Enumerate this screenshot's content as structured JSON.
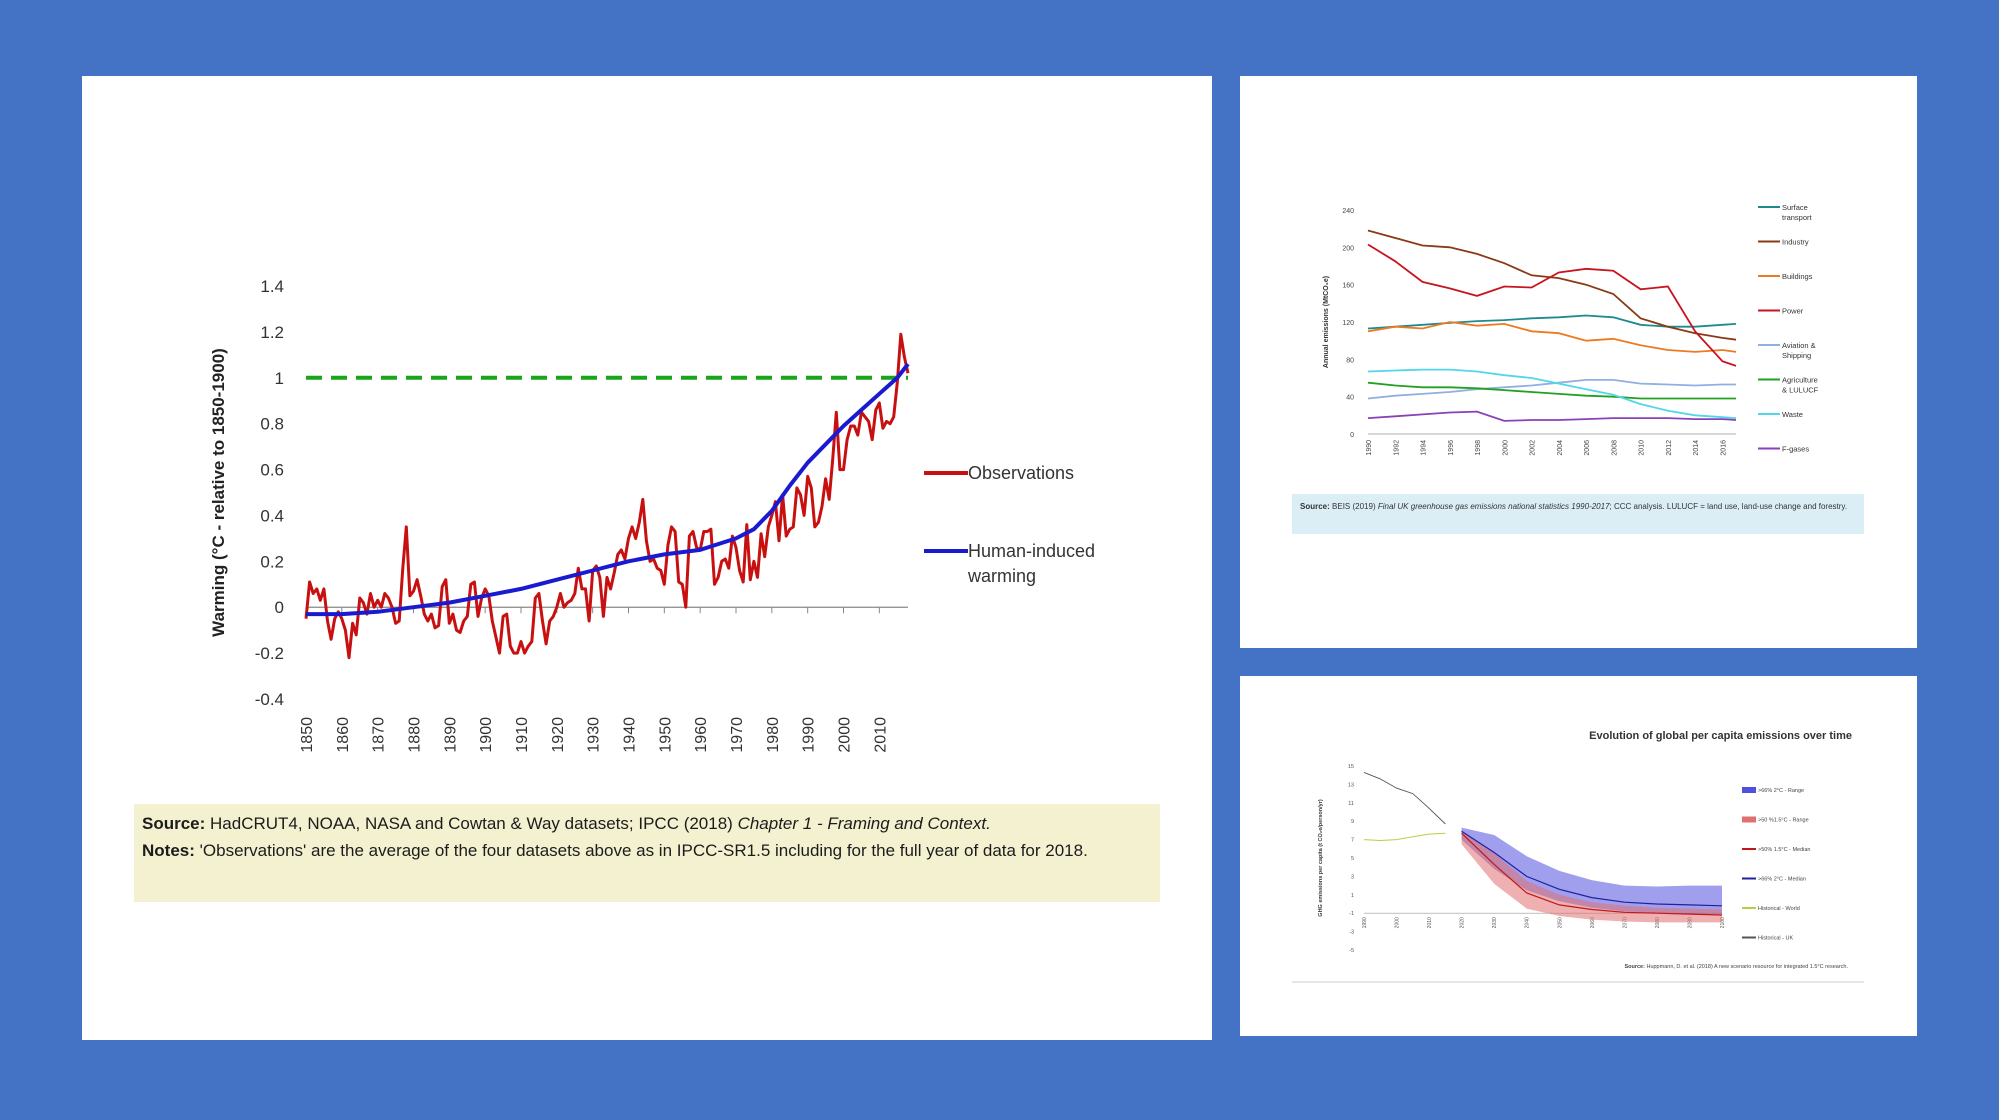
{
  "colors": {
    "background": "#4472c4",
    "observations": "#c81010",
    "human_induced": "#1a1ad0",
    "target_line": "#19a519",
    "note_box": "#f4f1d0"
  },
  "main": {
    "source_label": "Source:",
    "source_text": "HadCRUT4, NOAA, NASA and Cowtan & Way datasets; IPCC (2018) ",
    "source_italic": "Chapter 1 - Framing and Context.",
    "notes_label": "Notes:",
    "notes_text": "'Observations' are the average of the four datasets above as in IPCC-SR1.5 including for the full year of data for 2018."
  },
  "chart_data": [
    {
      "type": "line",
      "title": "",
      "xlabel": "",
      "ylabel": "Warming (°C - relative to 1850-1900)",
      "xlim": [
        1850,
        2018
      ],
      "ylim": [
        -0.4,
        1.4
      ],
      "yticks": [
        "1.4",
        "1.2",
        "1",
        "0.8",
        "0.6",
        "0.4",
        "0.2",
        "0",
        "-0.2",
        "-0.4"
      ],
      "xticks": [
        "1850",
        "1860",
        "1870",
        "1880",
        "1890",
        "1900",
        "1910",
        "1920",
        "1930",
        "1940",
        "1950",
        "1960",
        "1970",
        "1980",
        "1990",
        "2000",
        "2010"
      ],
      "legend_position": "right",
      "reference_line": {
        "y": 1.0,
        "style": "dashed"
      },
      "series": [
        {
          "name": "Observations",
          "x": [
            1850,
            1851,
            1852,
            1853,
            1854,
            1855,
            1856,
            1857,
            1858,
            1859,
            1860,
            1861,
            1862,
            1863,
            1864,
            1865,
            1866,
            1867,
            1868,
            1869,
            1870,
            1871,
            1872,
            1873,
            1874,
            1875,
            1876,
            1877,
            1878,
            1879,
            1880,
            1881,
            1882,
            1883,
            1884,
            1885,
            1886,
            1887,
            1888,
            1889,
            1890,
            1891,
            1892,
            1893,
            1894,
            1895,
            1896,
            1897,
            1898,
            1899,
            1900,
            1901,
            1902,
            1903,
            1904,
            1905,
            1906,
            1907,
            1908,
            1909,
            1910,
            1911,
            1912,
            1913,
            1914,
            1915,
            1916,
            1917,
            1918,
            1919,
            1920,
            1921,
            1922,
            1923,
            1924,
            1925,
            1926,
            1927,
            1928,
            1929,
            1930,
            1931,
            1932,
            1933,
            1934,
            1935,
            1936,
            1937,
            1938,
            1939,
            1940,
            1941,
            1942,
            1943,
            1944,
            1945,
            1946,
            1947,
            1948,
            1949,
            1950,
            1951,
            1952,
            1953,
            1954,
            1955,
            1956,
            1957,
            1958,
            1959,
            1960,
            1961,
            1962,
            1963,
            1964,
            1965,
            1966,
            1967,
            1968,
            1969,
            1970,
            1971,
            1972,
            1973,
            1974,
            1975,
            1976,
            1977,
            1978,
            1979,
            1980,
            1981,
            1982,
            1983,
            1984,
            1985,
            1986,
            1987,
            1988,
            1989,
            1990,
            1991,
            1992,
            1993,
            1994,
            1995,
            1996,
            1997,
            1998,
            1999,
            2000,
            2001,
            2002,
            2003,
            2004,
            2005,
            2006,
            2007,
            2008,
            2009,
            2010,
            2011,
            2012,
            2013,
            2014,
            2015,
            2016,
            2017,
            2018
          ],
          "values": [
            -0.05,
            0.11,
            0.06,
            0.08,
            0.03,
            0.08,
            -0.06,
            -0.14,
            -0.05,
            -0.02,
            -0.05,
            -0.1,
            -0.22,
            -0.07,
            -0.12,
            0.04,
            0.02,
            -0.03,
            0.06,
            0.0,
            0.03,
            0.0,
            0.06,
            0.04,
            0.0,
            -0.07,
            -0.06,
            0.17,
            0.35,
            0.05,
            0.07,
            0.12,
            0.05,
            -0.03,
            -0.06,
            -0.03,
            -0.09,
            -0.08,
            0.09,
            0.12,
            -0.07,
            -0.03,
            -0.1,
            -0.11,
            -0.06,
            -0.04,
            0.1,
            0.11,
            -0.04,
            0.04,
            0.08,
            0.05,
            -0.06,
            -0.13,
            -0.2,
            -0.04,
            -0.03,
            -0.17,
            -0.2,
            -0.2,
            -0.15,
            -0.2,
            -0.17,
            -0.15,
            0.04,
            0.06,
            -0.06,
            -0.16,
            -0.06,
            -0.04,
            0.0,
            0.06,
            0.0,
            0.02,
            0.03,
            0.06,
            0.17,
            0.08,
            0.08,
            -0.06,
            0.16,
            0.18,
            0.13,
            -0.04,
            0.13,
            0.08,
            0.15,
            0.23,
            0.25,
            0.21,
            0.3,
            0.35,
            0.3,
            0.37,
            0.47,
            0.29,
            0.2,
            0.21,
            0.17,
            0.16,
            0.1,
            0.27,
            0.35,
            0.33,
            0.11,
            0.1,
            0.0,
            0.31,
            0.33,
            0.26,
            0.25,
            0.33,
            0.33,
            0.34,
            0.1,
            0.13,
            0.2,
            0.21,
            0.17,
            0.31,
            0.26,
            0.16,
            0.11,
            0.36,
            0.12,
            0.2,
            0.13,
            0.32,
            0.22,
            0.35,
            0.4,
            0.46,
            0.29,
            0.49,
            0.31,
            0.34,
            0.35,
            0.52,
            0.49,
            0.4,
            0.57,
            0.52,
            0.35,
            0.37,
            0.44,
            0.56,
            0.47,
            0.65,
            0.85,
            0.6,
            0.6,
            0.73,
            0.79,
            0.79,
            0.75,
            0.85,
            0.83,
            0.81,
            0.73,
            0.86,
            0.89,
            0.78,
            0.81,
            0.8,
            0.83,
            0.98,
            1.19,
            1.09,
            1.02
          ],
          "color": "#c81010"
        },
        {
          "name": "Human-induced warming",
          "x": [
            1850,
            1860,
            1870,
            1880,
            1890,
            1900,
            1910,
            1920,
            1930,
            1940,
            1950,
            1960,
            1970,
            1975,
            1980,
            1985,
            1990,
            1995,
            2000,
            2005,
            2010,
            2015,
            2018
          ],
          "values": [
            -0.03,
            -0.03,
            -0.02,
            0.0,
            0.02,
            0.05,
            0.08,
            0.12,
            0.16,
            0.2,
            0.23,
            0.25,
            0.3,
            0.34,
            0.42,
            0.53,
            0.63,
            0.71,
            0.79,
            0.86,
            0.93,
            1.0,
            1.06
          ],
          "color": "#1a1ad0"
        }
      ]
    },
    {
      "type": "line",
      "title": "",
      "ylabel": "Annual emissions (MtCO₂e)",
      "ylim": [
        0,
        240
      ],
      "yticks": [
        "240",
        "200",
        "160",
        "120",
        "80",
        "40",
        "0"
      ],
      "xticks": [
        "1990",
        "1992",
        "1994",
        "1996",
        "1998",
        "2000",
        "2002",
        "2004",
        "2006",
        "2008",
        "2010",
        "2012",
        "2014",
        "2016"
      ],
      "x": [
        1990,
        1992,
        1994,
        1996,
        1998,
        2000,
        2002,
        2004,
        2006,
        2008,
        2010,
        2012,
        2014,
        2016,
        2017
      ],
      "series": [
        {
          "name": "Surface transport",
          "values": [
            113,
            115,
            117,
            119,
            121,
            122,
            124,
            125,
            127,
            125,
            117,
            115,
            115,
            117,
            118
          ],
          "color": "#1e8a90"
        },
        {
          "name": "Industry",
          "values": [
            218,
            210,
            202,
            200,
            193,
            183,
            170,
            167,
            160,
            150,
            124,
            115,
            108,
            103,
            101
          ],
          "color": "#8a3a14"
        },
        {
          "name": "Buildings",
          "values": [
            110,
            115,
            113,
            120,
            116,
            118,
            110,
            108,
            100,
            102,
            95,
            90,
            88,
            90,
            88
          ],
          "color": "#ee7a20"
        },
        {
          "name": "Power",
          "values": [
            203,
            185,
            163,
            156,
            148,
            158,
            157,
            173,
            177,
            175,
            155,
            158,
            110,
            78,
            73
          ],
          "color": "#c8141e"
        },
        {
          "name": "Aviation & Shipping",
          "values": [
            38,
            41,
            43,
            45,
            48,
            50,
            52,
            55,
            58,
            58,
            54,
            53,
            52,
            53,
            53
          ],
          "color": "#8fb0e0"
        },
        {
          "name": "Agriculture & LULUCF",
          "values": [
            55,
            52,
            50,
            50,
            49,
            47,
            45,
            43,
            41,
            40,
            38,
            38,
            38,
            38,
            38
          ],
          "color": "#22a020"
        },
        {
          "name": "Waste",
          "values": [
            67,
            68,
            69,
            69,
            67,
            63,
            60,
            54,
            48,
            42,
            32,
            25,
            20,
            18,
            17
          ],
          "color": "#52d6ea"
        },
        {
          "name": "F-gases",
          "values": [
            17,
            19,
            21,
            23,
            24,
            14,
            15,
            15,
            16,
            17,
            17,
            17,
            16,
            16,
            15
          ],
          "color": "#8a40b8"
        }
      ],
      "source_label": "Source:",
      "source_text": "BEIS (2019) ",
      "source_italic": "Final UK greenhouse gas emissions national statistics 1990-2017",
      "source_rest": "; CCC analysis. LULUCF = land use, land-use change and forestry."
    },
    {
      "type": "area",
      "title": "Evolution of global per capita emissions over time",
      "ylabel": "GHG emissions per capita (t CO₂e/person/yr)",
      "ylim": [
        -5,
        15
      ],
      "yticks": [
        "15",
        "13",
        "11",
        "9",
        "7",
        "5",
        "3",
        "1",
        "-1",
        "-3",
        "-5"
      ],
      "xticks": [
        "1990",
        "2000",
        "2010",
        "2020",
        "2030",
        "2040",
        "2050",
        "2060",
        "2070",
        "2080",
        "2090",
        "2100"
      ],
      "series": [
        {
          "name": ">66% 2°C - Range",
          "color": "#5050e0"
        },
        {
          "name": ">50 %1.5°C - Range",
          "color": "#e07070"
        },
        {
          "name": ">50% 1.5°C - Median",
          "color": "#c01818"
        },
        {
          "name": ">66% 2°C - Median",
          "color": "#2020a0"
        },
        {
          "name": "Historical - World",
          "x": [
            1990,
            1995,
            2000,
            2005,
            2010,
            2015
          ],
          "values": [
            7.0,
            6.9,
            7.0,
            7.3,
            7.6,
            7.7
          ],
          "color": "#b8d040"
        },
        {
          "name": "Historical - UK",
          "x": [
            1990,
            1995,
            2000,
            2005,
            2010,
            2015
          ],
          "values": [
            14.3,
            13.6,
            12.6,
            12.0,
            10.4,
            8.7
          ],
          "color": "#555555"
        }
      ],
      "source_label": "Source:",
      "source_text": "Huppmann, D. et al. (2018) A new scenario resource for integrated 1.5°C research."
    }
  ]
}
